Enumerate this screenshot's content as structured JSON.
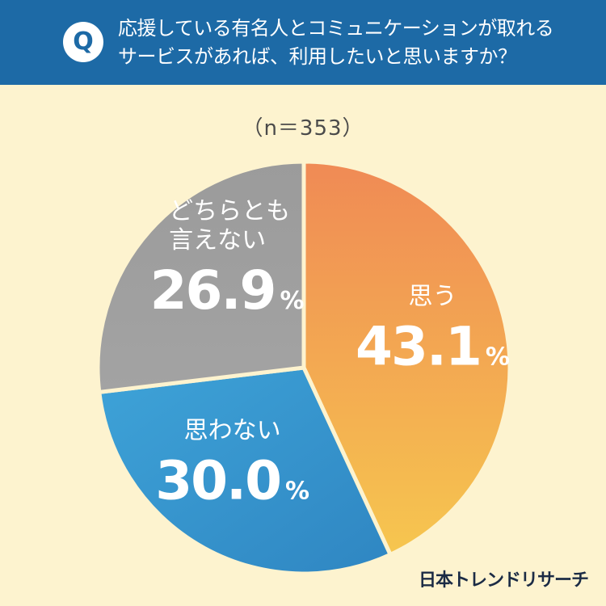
{
  "header": {
    "badge": "Q",
    "question_line1": "応援している有名人とコミュニケーションが取れる",
    "question_line2": "サービスがあれば、利用したいと思いますか？"
  },
  "sample_size": "（n＝353）",
  "brand": "日本トレンドリサーチ",
  "colors": {
    "header_bg": "#1d6aa6",
    "background": "#fdf3cf",
    "yes": "#f39a4f",
    "no": "#3a97cf",
    "neutral": "#9e9e9e"
  },
  "chart_data": {
    "type": "pie",
    "title": "応援している有名人とコミュニケーションが取れるサービスがあれば、利用したいと思いますか？",
    "n": 353,
    "slices": [
      {
        "label": "思う",
        "value": 43.1,
        "display": "43.1",
        "unit": "%",
        "color": "#f39a4f"
      },
      {
        "label": "思わない",
        "value": 30.0,
        "display": "30.0",
        "unit": "%",
        "color": "#3a97cf"
      },
      {
        "label": "どちらとも言えない",
        "label_lines": [
          "どちらとも",
          "言えない"
        ],
        "value": 26.9,
        "display": "26.9",
        "unit": "%",
        "color": "#9e9e9e"
      }
    ],
    "start": "top",
    "direction": "clockwise"
  }
}
